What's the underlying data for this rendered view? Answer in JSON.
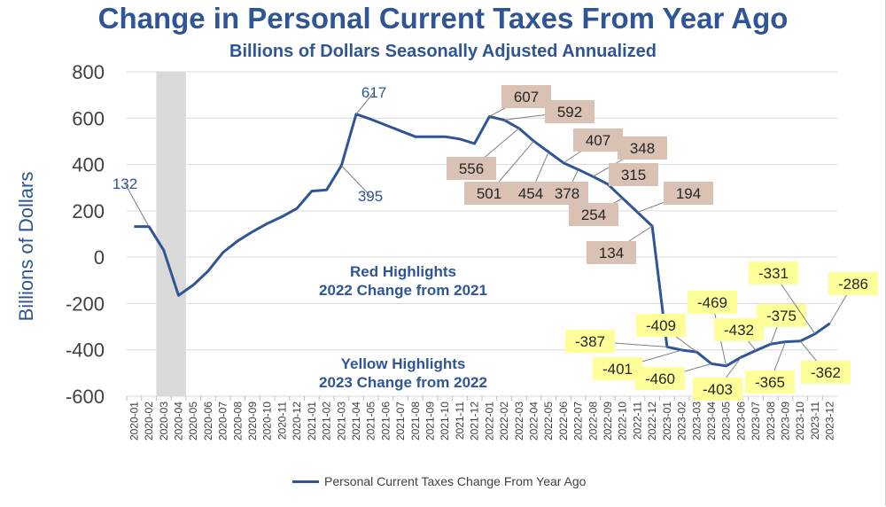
{
  "chart_data": {
    "type": "line",
    "title": "Change in Personal Current Taxes From Year Ago",
    "subtitle": "Billions of Dollars Seasonally Adjusted Annualized",
    "ylabel": "Billions of Dollars",
    "xlabel": "",
    "ylim": [
      -600,
      800
    ],
    "yticks": [
      800,
      600,
      400,
      200,
      0,
      -200,
      -400,
      -600
    ],
    "grid": true,
    "recession_shading": [
      "2020-03",
      "2020-04"
    ],
    "legend": "bottom",
    "categories": [
      "2020-01",
      "2020-02",
      "2020-03",
      "2020-04",
      "2020-05",
      "2020-06",
      "2020-07",
      "2020-08",
      "2020-09",
      "2020-10",
      "2020-11",
      "2020-12",
      "2021-01",
      "2021-02",
      "2021-03",
      "2021-04",
      "2021-05",
      "2021-06",
      "2021-07",
      "2021-08",
      "2021-09",
      "2021-10",
      "2021-11",
      "2021-12",
      "2022-01",
      "2022-02",
      "2022-03",
      "2022-04",
      "2022-05",
      "2022-06",
      "2022-07",
      "2022-08",
      "2022-09",
      "2022-10",
      "2022-11",
      "2022-12",
      "2023-01",
      "2023-02",
      "2023-03",
      "2023-04",
      "2023-05",
      "2023-06",
      "2023-07",
      "2023-08",
      "2023-09",
      "2023-10",
      "2023-11",
      "2023-12"
    ],
    "series": [
      {
        "name": "Personal Current Taxes Change From Year Ago",
        "color": "#2f5596",
        "values": [
          132,
          132,
          30,
          -165,
          -120,
          -60,
          20,
          70,
          110,
          145,
          175,
          210,
          285,
          290,
          395,
          617,
          595,
          570,
          545,
          520,
          520,
          520,
          510,
          490,
          607,
          592,
          556,
          501,
          454,
          407,
          378,
          348,
          315,
          254,
          194,
          134,
          -387,
          -401,
          -409,
          -460,
          -469,
          -432,
          -403,
          -375,
          -365,
          -362,
          -331,
          -286
        ]
      }
    ],
    "annotations": [
      {
        "text": "132",
        "style": "plain"
      },
      {
        "text": "617",
        "style": "plain"
      },
      {
        "text": "395",
        "style": "plain"
      },
      {
        "text": "607",
        "style": "red"
      },
      {
        "text": "592",
        "style": "red"
      },
      {
        "text": "556",
        "style": "red"
      },
      {
        "text": "501",
        "style": "red"
      },
      {
        "text": "454",
        "style": "red"
      },
      {
        "text": "407",
        "style": "red"
      },
      {
        "text": "378",
        "style": "red"
      },
      {
        "text": "348",
        "style": "red"
      },
      {
        "text": "315",
        "style": "red"
      },
      {
        "text": "254",
        "style": "red"
      },
      {
        "text": "194",
        "style": "red"
      },
      {
        "text": "134",
        "style": "red"
      },
      {
        "text": "-387",
        "style": "yellow"
      },
      {
        "text": "-401",
        "style": "yellow"
      },
      {
        "text": "-409",
        "style": "yellow"
      },
      {
        "text": "-460",
        "style": "yellow"
      },
      {
        "text": "-469",
        "style": "yellow"
      },
      {
        "text": "-403",
        "style": "yellow"
      },
      {
        "text": "-432",
        "style": "yellow"
      },
      {
        "text": "-375",
        "style": "yellow"
      },
      {
        "text": "-365",
        "style": "yellow"
      },
      {
        "text": "-331",
        "style": "yellow"
      },
      {
        "text": "-362",
        "style": "yellow"
      },
      {
        "text": "-286",
        "style": "yellow"
      }
    ],
    "notes": [
      {
        "line1": "Red Highlights",
        "line2": "2022 Change from 2021"
      },
      {
        "line1": "Yellow Highlights",
        "line2": "2023 Change from 2022"
      }
    ],
    "colors": {
      "line": "#2f5596",
      "title": "#2f5596",
      "red_highlight": "#d9c2b4",
      "yellow_highlight": "#ffff99",
      "grid": "#d9d9d9",
      "shading": "#d9d9d9"
    }
  }
}
